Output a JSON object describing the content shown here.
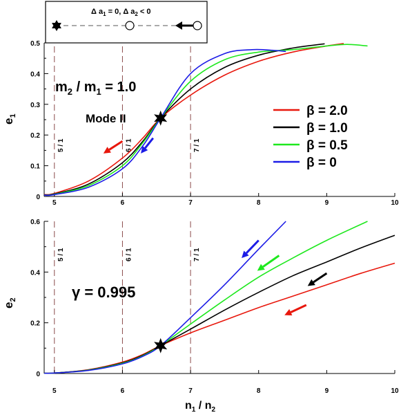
{
  "chart_data": [
    {
      "type": "line",
      "panel": "top",
      "xlim": [
        4.85,
        10
      ],
      "ylim": [
        0,
        0.5
      ],
      "xticks": [
        5,
        6,
        7,
        8,
        9,
        10
      ],
      "yticks": [
        0,
        0.1,
        0.2,
        0.3,
        0.4,
        0.5
      ],
      "xtick_labels": [
        "5",
        "6",
        "7",
        "8",
        "9",
        "10"
      ],
      "ytick_labels": [
        "0",
        "0.1",
        "0.2",
        "0.3",
        "0.4",
        "0.5"
      ],
      "ylabel": {
        "main": "e",
        "sub": "1"
      },
      "resonances": [
        {
          "x": 5,
          "label": "5 / 1"
        },
        {
          "x": 6,
          "label": "6 / 1"
        },
        {
          "x": 7,
          "label": "7 / 1"
        }
      ],
      "series": [
        {
          "name": "β = 2.0",
          "color": "#e8170c",
          "x": [
            4.85,
            5.0,
            5.5,
            6.0,
            6.3,
            6.56,
            7.0,
            7.5,
            8.0,
            8.5,
            9.0,
            9.25
          ],
          "y": [
            0.006,
            0.01,
            0.05,
            0.125,
            0.19,
            0.255,
            0.33,
            0.395,
            0.44,
            0.47,
            0.49,
            0.498
          ]
        },
        {
          "name": "β = 1.0",
          "color": "#000000",
          "x": [
            4.85,
            5.0,
            5.5,
            6.0,
            6.3,
            6.56,
            7.0,
            7.5,
            8.0,
            8.5,
            8.97
          ],
          "y": [
            0.005,
            0.008,
            0.04,
            0.11,
            0.18,
            0.255,
            0.35,
            0.42,
            0.46,
            0.483,
            0.497
          ]
        },
        {
          "name": "β = 0.5",
          "color": "#1ee81e",
          "x": [
            4.85,
            5.0,
            5.5,
            6.0,
            6.3,
            6.56,
            7.0,
            7.5,
            8.0,
            8.5,
            9.0,
            9.3,
            9.6
          ],
          "y": [
            0.004,
            0.007,
            0.035,
            0.1,
            0.175,
            0.255,
            0.375,
            0.445,
            0.47,
            0.478,
            0.49,
            0.495,
            0.49
          ]
        },
        {
          "name": "β = 0",
          "color": "#1c1ce6",
          "x": [
            4.85,
            5.0,
            5.5,
            6.0,
            6.3,
            6.56,
            7.0,
            7.5,
            7.9,
            8.2,
            8.4
          ],
          "y": [
            0.004,
            0.006,
            0.03,
            0.09,
            0.165,
            0.255,
            0.4,
            0.465,
            0.478,
            0.476,
            0.472
          ]
        }
      ],
      "marker": {
        "x": 6.56,
        "y": 0.255
      },
      "annotations": {
        "mass_ratio": {
          "m": "m",
          "sub2": "2",
          "slash": " / ",
          "sub1": "1",
          "value": " = 1.0"
        },
        "mode": "Mode II"
      },
      "arrows": [
        {
          "color": "#e8170c",
          "from": [
            6.0,
            0.18
          ],
          "to": [
            5.72,
            0.14
          ]
        },
        {
          "color": "#1c1ce6",
          "from": [
            6.45,
            0.19
          ],
          "to": [
            6.27,
            0.14
          ]
        }
      ]
    },
    {
      "type": "line",
      "panel": "bottom",
      "xlim": [
        4.85,
        10
      ],
      "ylim": [
        0,
        0.6
      ],
      "xticks": [
        5,
        6,
        7,
        8,
        9,
        10
      ],
      "yticks": [
        0,
        0.2,
        0.4,
        0.6
      ],
      "xtick_labels": [
        "5",
        "6",
        "7",
        "8",
        "9",
        "10"
      ],
      "ytick_labels": [
        "0",
        "0.2",
        "0.4",
        "0.6"
      ],
      "ylabel": {
        "main": "e",
        "sub": "2"
      },
      "xlabel": {
        "n": "n",
        "sub1": "1",
        "slash": " / ",
        "sub2": "2"
      },
      "resonances": [
        {
          "x": 5,
          "label": "5 / 1"
        },
        {
          "x": 6,
          "label": "6 / 1"
        },
        {
          "x": 7,
          "label": "7 / 1"
        }
      ],
      "series": [
        {
          "name": "β = 2.0",
          "color": "#e8170c",
          "x": [
            4.85,
            5.0,
            5.5,
            6.0,
            6.3,
            6.56,
            7.0,
            7.5,
            8.0,
            8.5,
            9.0,
            9.5,
            10.0
          ],
          "y": [
            0.001,
            0.002,
            0.015,
            0.045,
            0.075,
            0.11,
            0.16,
            0.21,
            0.26,
            0.305,
            0.35,
            0.395,
            0.435
          ]
        },
        {
          "name": "β = 1.0",
          "color": "#000000",
          "x": [
            4.85,
            5.0,
            5.5,
            6.0,
            6.3,
            6.56,
            7.0,
            7.5,
            8.0,
            8.5,
            9.0,
            9.5,
            10.0
          ],
          "y": [
            0.001,
            0.002,
            0.014,
            0.042,
            0.072,
            0.11,
            0.175,
            0.25,
            0.32,
            0.385,
            0.44,
            0.495,
            0.545
          ]
        },
        {
          "name": "β = 0.5",
          "color": "#1ee81e",
          "x": [
            4.85,
            5.0,
            5.5,
            6.0,
            6.3,
            6.56,
            7.0,
            7.5,
            8.0,
            8.5,
            9.0,
            9.6
          ],
          "y": [
            0.001,
            0.002,
            0.013,
            0.04,
            0.07,
            0.11,
            0.195,
            0.29,
            0.38,
            0.455,
            0.525,
            0.6
          ]
        },
        {
          "name": "β = 0",
          "color": "#1c1ce6",
          "x": [
            4.85,
            5.0,
            5.5,
            6.0,
            6.3,
            6.56,
            7.0,
            7.5,
            8.0,
            8.4
          ],
          "y": [
            0.001,
            0.002,
            0.012,
            0.038,
            0.068,
            0.11,
            0.22,
            0.35,
            0.49,
            0.6
          ]
        }
      ],
      "marker": {
        "x": 6.56,
        "y": 0.11
      },
      "annotations": {
        "gamma": "γ = 0.995"
      },
      "arrows": [
        {
          "color": "#1c1ce6",
          "from": [
            8.0,
            0.525
          ],
          "to": [
            7.75,
            0.455
          ]
        },
        {
          "color": "#1ee81e",
          "from": [
            8.3,
            0.465
          ],
          "to": [
            7.98,
            0.405
          ]
        },
        {
          "color": "#000000",
          "from": [
            9.0,
            0.395
          ],
          "to": [
            8.72,
            0.345
          ]
        },
        {
          "color": "#e8170c",
          "from": [
            8.7,
            0.27
          ],
          "to": [
            8.38,
            0.23
          ]
        }
      ]
    }
  ],
  "legend": {
    "placement": "right-middle of top panel",
    "items": [
      {
        "label": "β = 2.0",
        "color": "#e8170c"
      },
      {
        "label": "β = 1.0",
        "color": "#000000"
      },
      {
        "label": "β = 0.5",
        "color": "#1ee81e"
      },
      {
        "label": "β = 0",
        "color": "#1c1ce6"
      }
    ]
  },
  "inset_legend": {
    "text_parts": {
      "d1": "Δ a",
      "s1": "1",
      "m": " = 0, Δ a",
      "s2": "2",
      "e": " < 0"
    },
    "icons": [
      "star-icon",
      "open-circle-icon",
      "arrow-circle-icon"
    ]
  }
}
